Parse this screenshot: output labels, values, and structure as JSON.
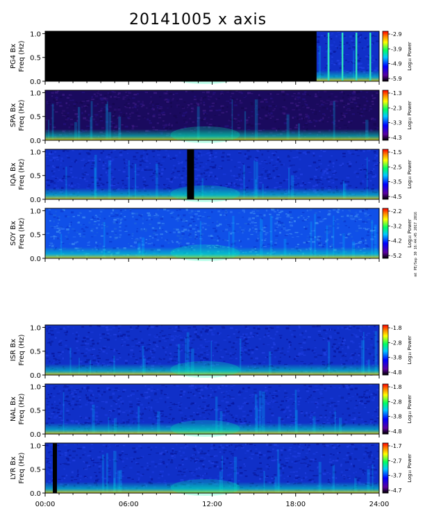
{
  "chart_data": {
    "type": "heatmap",
    "title": "20141005 x axis",
    "footnote": "mt PE/Sep 30 16:44:45 2017 2016",
    "x_ticks": [
      "00:00",
      "06:00",
      "12:00",
      "18:00",
      "24:00"
    ],
    "xlim": [
      0,
      24
    ],
    "y_ticks": [
      "0.0",
      "0.5",
      "1.0"
    ],
    "ylim": [
      0,
      1.05
    ],
    "panels": [
      {
        "name": "PG4 Bx",
        "ylabel": "Freq (Hz)",
        "colorbar_label": "Log₁₀ Power",
        "colorbar_ticks": [
          "-2.9",
          "-3.9",
          "-4.9",
          "-5.9"
        ],
        "data_gaps_hours": [
          [
            0,
            19.5
          ]
        ]
      },
      {
        "name": "SPA Bx",
        "ylabel": "Freq (Hz)",
        "colorbar_label": "Log₁₀ Power",
        "colorbar_ticks": [
          "-1.3",
          "-2.3",
          "-3.3",
          "-4.3"
        ],
        "data_gaps_hours": []
      },
      {
        "name": "IQA Bx",
        "ylabel": "Freq (Hz)",
        "colorbar_label": "Log₁₀ Power",
        "colorbar_ticks": [
          "-1.5",
          "-2.5",
          "-3.5",
          "-4.5"
        ],
        "data_gaps_hours": [
          [
            10.2,
            10.7
          ]
        ]
      },
      {
        "name": "SOY Bx",
        "ylabel": "Freq (Hz)",
        "colorbar_label": "Log₁₀ Power",
        "colorbar_ticks": [
          "-2.2",
          "-3.2",
          "-4.2",
          "-5.2"
        ],
        "data_gaps_hours": []
      },
      {
        "name": "ISR Bx",
        "ylabel": "Freq (Hz)",
        "colorbar_label": "Log₁₀ Power",
        "colorbar_ticks": [
          "-1.8",
          "-2.8",
          "-3.8",
          "-4.8"
        ],
        "data_gaps_hours": []
      },
      {
        "name": "NAL Bx",
        "ylabel": "Freq (Hz)",
        "colorbar_label": "Log₁₀ Power",
        "colorbar_ticks": [
          "-1.8",
          "-2.8",
          "-3.8",
          "-4.8"
        ],
        "data_gaps_hours": []
      },
      {
        "name": "LYR Bx",
        "ylabel": "Freq (Hz)",
        "colorbar_label": "Log₁₀ Power",
        "colorbar_ticks": [
          "-1.7",
          "-2.7",
          "-3.7",
          "-4.7"
        ],
        "data_gaps_hours": [
          [
            0.55,
            0.85
          ]
        ]
      }
    ]
  }
}
